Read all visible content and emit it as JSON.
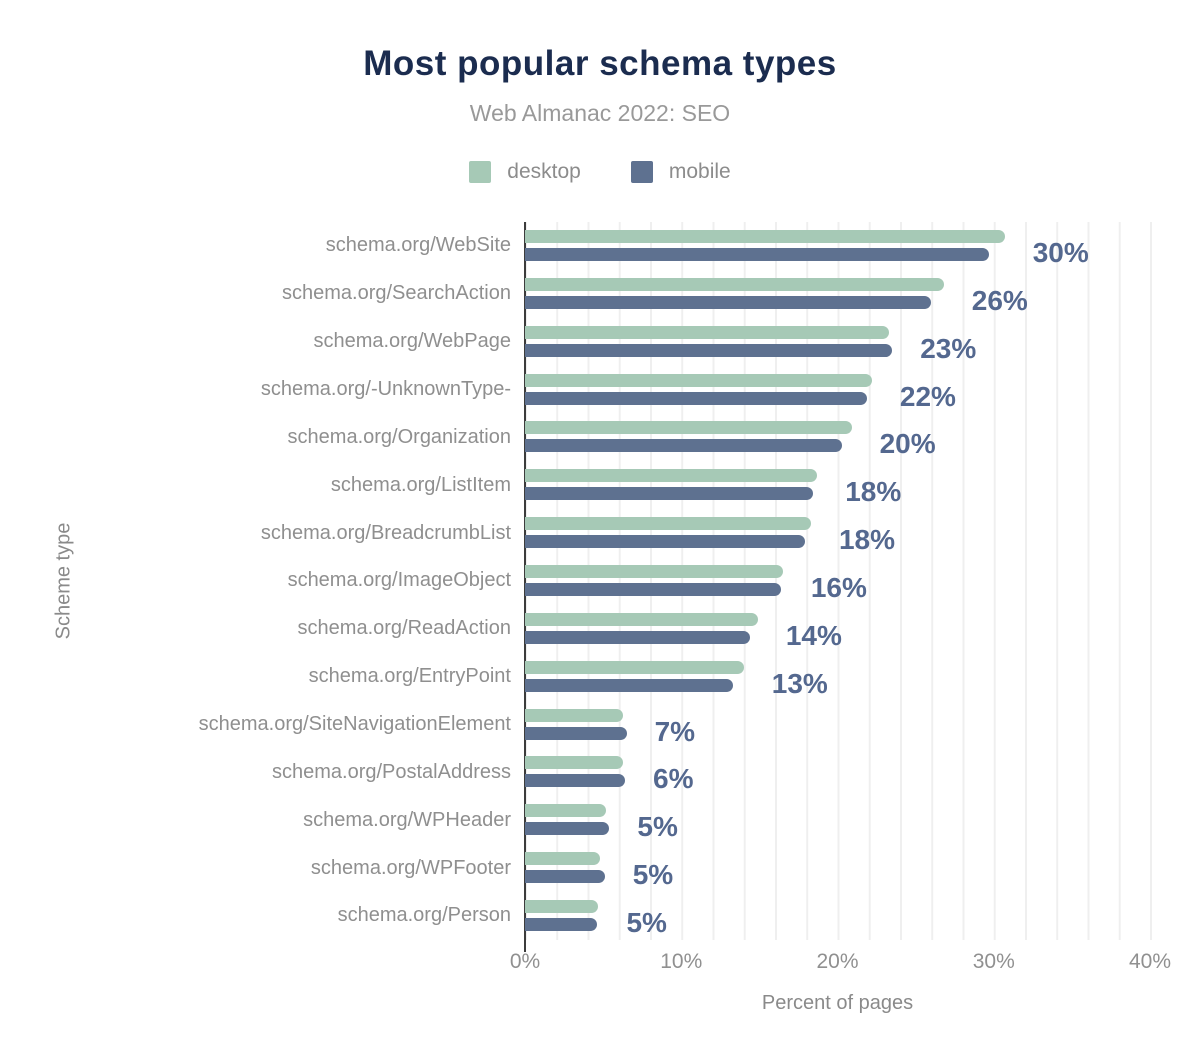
{
  "header": {
    "title": "Most popular schema types",
    "subtitle": "Web Almanac 2022: SEO"
  },
  "legend": [
    {
      "label": "desktop",
      "color": "#a6c9b6"
    },
    {
      "label": "mobile",
      "color": "#5e7190"
    }
  ],
  "colors": {
    "desktop_bar": "#a6c9b6",
    "mobile_bar": "#5e7190",
    "value_label": "#54688f",
    "title_text": "#1b2c4f",
    "muted_text": "#8f8f8f",
    "axis_line": "#3c3c3c",
    "gridline": "#efefef"
  },
  "chart_data": {
    "type": "bar",
    "orientation": "horizontal",
    "title": "Most popular schema types",
    "subtitle": "Web Almanac 2022: SEO",
    "xlabel": "Percent of pages",
    "ylabel": "Scheme type",
    "xlim": [
      0,
      40
    ],
    "grid": "vertical lines every 2%",
    "legend_position": "top center",
    "x_ticks": [
      {
        "value": 0,
        "label": "0%"
      },
      {
        "value": 10,
        "label": "10%"
      },
      {
        "value": 20,
        "label": "20%"
      },
      {
        "value": 30,
        "label": "30%"
      },
      {
        "value": 40,
        "label": "40%"
      }
    ],
    "categories": [
      "schema.org/WebSite",
      "schema.org/SearchAction",
      "schema.org/WebPage",
      "schema.org/-UnknownType-",
      "schema.org/Organization",
      "schema.org/ListItem",
      "schema.org/BreadcrumbList",
      "schema.org/ImageObject",
      "schema.org/ReadAction",
      "schema.org/EntryPoint",
      "schema.org/SiteNavigationElement",
      "schema.org/PostalAddress",
      "schema.org/WPHeader",
      "schema.org/WPFooter",
      "schema.org/Person"
    ],
    "series": [
      {
        "name": "desktop",
        "values": [
          30.7,
          26.8,
          23.3,
          22.2,
          20.9,
          18.7,
          18.3,
          16.5,
          14.9,
          14.0,
          6.3,
          6.3,
          5.2,
          4.8,
          4.7
        ]
      },
      {
        "name": "mobile",
        "values": [
          29.7,
          26.0,
          23.5,
          21.9,
          20.3,
          18.4,
          17.9,
          16.4,
          14.4,
          13.3,
          6.5,
          6.4,
          5.4,
          5.1,
          4.6
        ]
      }
    ],
    "bar_labels": [
      "30%",
      "26%",
      "23%",
      "22%",
      "20%",
      "18%",
      "18%",
      "16%",
      "14%",
      "13%",
      "7%",
      "6%",
      "5%",
      "5%",
      "5%"
    ]
  }
}
